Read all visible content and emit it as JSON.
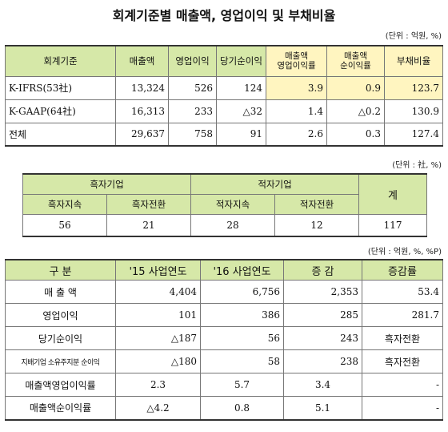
{
  "title": "회계기준별 매출액, 영업이익 및 부채비율",
  "t1": {
    "unit": "(단위 : 억원, %)",
    "headers": [
      "회계기준",
      "매출액",
      "영업이익",
      "당기순이익",
      "매출액\n영업이익률",
      "매출액\n순이익률",
      "부채비율"
    ],
    "rows": [
      [
        "K-IFRS(53社)",
        "13,324",
        "526",
        "124",
        "3.9",
        "0.9",
        "123.7"
      ],
      [
        "K-GAAP(64社)",
        "16,313",
        "233",
        "△32",
        "1.4",
        "△0.2",
        "130.9"
      ],
      [
        "전체",
        "29,637",
        "758",
        "91",
        "2.6",
        "0.3",
        "127.4"
      ]
    ]
  },
  "t2": {
    "unit": "(단위 : 社, %)",
    "group_black": "흑자기업",
    "group_red": "적자기업",
    "total": "계",
    "sub": [
      "흑자지속",
      "흑자전환",
      "적자지속",
      "적자전환"
    ],
    "values": [
      "56",
      "21",
      "28",
      "12",
      "117"
    ]
  },
  "t3": {
    "unit": "(단위 : 억원, %, %P)",
    "headers": [
      "구  분",
      "'15 사업연도",
      "'16 사업연도",
      "증  감",
      "증감률"
    ],
    "rows": [
      [
        "매 출 액",
        "4,404",
        "6,756",
        "2,353",
        "53.4"
      ],
      [
        "영업이익",
        "101",
        "386",
        "285",
        "281.7"
      ],
      [
        "당기순이익",
        "△187",
        "56",
        "243",
        "흑자전환"
      ],
      [
        "지배기업 소유주지분 순이익",
        "△180",
        "58",
        "238",
        "흑자전환"
      ],
      [
        "매출액영업이익률",
        "2.3",
        "5.7",
        "3.4",
        "-"
      ],
      [
        "매출액순이익률",
        "△4.2",
        "0.8",
        "5.1",
        "-"
      ]
    ]
  }
}
